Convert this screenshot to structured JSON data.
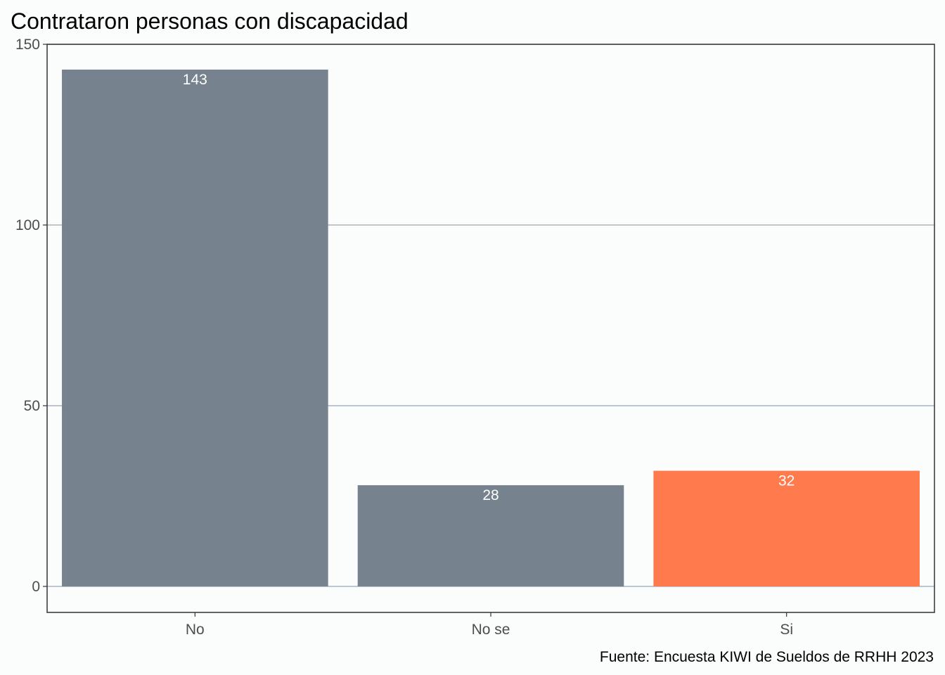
{
  "chart_data": {
    "type": "bar",
    "title": "Contrataron personas con discapacidad",
    "caption": "Fuente: Encuesta KIWI de Sueldos de RRHH 2023",
    "xlabel": "",
    "ylabel": "",
    "categories": [
      "No",
      "No se",
      "Si"
    ],
    "values": [
      143,
      28,
      32
    ],
    "value_labels": [
      "143",
      "28",
      "32"
    ],
    "ylim": [
      0,
      150
    ],
    "y_ticks": [
      0,
      50,
      100,
      150
    ],
    "y_tick_labels": [
      "0",
      "50",
      "100",
      "150"
    ],
    "grid": true,
    "legend": "none",
    "colors": {
      "default_bar": "#76838e",
      "highlight_bar": "#ff7a4d",
      "background": "#fbfcfc",
      "gridline": "#a9b4c2"
    },
    "highlight_category": "Si"
  }
}
